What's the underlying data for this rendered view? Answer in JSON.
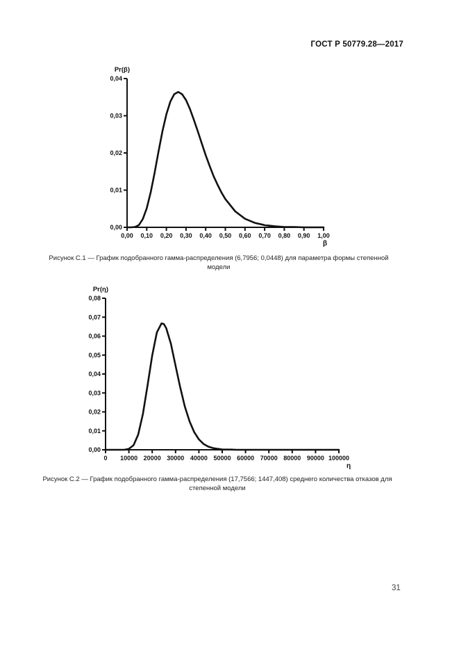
{
  "page": {
    "header_title": "ГОСТ Р 50779.28—2017",
    "page_number": "31"
  },
  "chart_data": [
    {
      "type": "line",
      "caption": "Рисунок С.1 — График подобранного гамма-распределения (6,7956; 0,0448) для параметра формы степенной\nмодели",
      "ylabel": "Pr(β)",
      "xlabel": "β",
      "xlim": [
        0,
        1.0
      ],
      "ylim": [
        0,
        0.04
      ],
      "x_tick_values": [
        0,
        0.1,
        0.2,
        0.3,
        0.4,
        0.5,
        0.6,
        0.7,
        0.8,
        0.9,
        1.0
      ],
      "x_tick_labels": [
        "0,00",
        "0,10",
        "0,20",
        "0,30",
        "0,40",
        "0,50",
        "0,60",
        "0,70",
        "0,80",
        "0,90",
        "1,00"
      ],
      "y_tick_values": [
        0,
        0.01,
        0.02,
        0.03,
        0.04
      ],
      "y_tick_labels": [
        "0,00",
        "0,01",
        "0,02",
        "0,03",
        "0,04"
      ],
      "grid": false,
      "legend": "none",
      "series": [
        {
          "name": "гамма-распределение (6,7956; 0,0448)",
          "x": [
            0,
            0.02,
            0.04,
            0.06,
            0.08,
            0.1,
            0.12,
            0.14,
            0.16,
            0.18,
            0.2,
            0.22,
            0.24,
            0.26,
            0.28,
            0.3,
            0.32,
            0.34,
            0.36,
            0.38,
            0.4,
            0.42,
            0.44,
            0.46,
            0.48,
            0.5,
            0.55,
            0.6,
            0.65,
            0.7,
            0.75,
            0.8,
            0.85,
            0.9,
            0.95,
            1.0
          ],
          "y": [
            0,
            0.0,
            0.0001,
            0.0006,
            0.0022,
            0.0051,
            0.0094,
            0.0146,
            0.0204,
            0.0258,
            0.0304,
            0.0338,
            0.0358,
            0.0364,
            0.0358,
            0.0342,
            0.0318,
            0.0289,
            0.0258,
            0.0226,
            0.0194,
            0.0165,
            0.0138,
            0.0115,
            0.0094,
            0.0076,
            0.0043,
            0.0023,
            0.0012,
            0.0006,
            0.0003,
            0.0001,
            0.0001,
            0.0,
            0.0,
            0.0
          ]
        }
      ]
    },
    {
      "type": "line",
      "caption": "Рисунок С.2 — График подобранного гамма-распределения (17,7566; 1447,408) среднего количества отказов для\nстепенной модели",
      "ylabel": "Pr(η)",
      "xlabel": "η",
      "xlim": [
        0,
        100000
      ],
      "ylim": [
        0,
        0.08
      ],
      "x_tick_values": [
        0,
        10000,
        20000,
        30000,
        40000,
        50000,
        60000,
        70000,
        80000,
        90000,
        100000
      ],
      "x_tick_labels": [
        "0",
        "10000",
        "20000",
        "30000",
        "40000",
        "50000",
        "60000",
        "70000",
        "80000",
        "90000",
        "100000"
      ],
      "y_tick_values": [
        0,
        0.01,
        0.02,
        0.03,
        0.04,
        0.05,
        0.06,
        0.07,
        0.08
      ],
      "y_tick_labels": [
        "0,00",
        "0,01",
        "0,02",
        "0,03",
        "0,04",
        "0,05",
        "0,06",
        "0,07",
        "0,08"
      ],
      "grid": false,
      "legend": "none",
      "series": [
        {
          "name": "гамма-распределение (17,7566; 1447,408)",
          "x": [
            0,
            2000,
            4000,
            6000,
            8000,
            10000,
            12000,
            14000,
            16000,
            18000,
            20000,
            22000,
            24000,
            25000,
            26000,
            28000,
            30000,
            32000,
            34000,
            36000,
            38000,
            40000,
            42000,
            44000,
            46000,
            48000,
            50000,
            52000,
            54000,
            56000,
            58000,
            60000,
            70000,
            80000,
            90000,
            100000
          ],
          "y": [
            0,
            0,
            0,
            0,
            0.0,
            0.0005,
            0.0024,
            0.008,
            0.0189,
            0.034,
            0.0498,
            0.062,
            0.0667,
            0.0664,
            0.0642,
            0.056,
            0.0444,
            0.033,
            0.0228,
            0.015,
            0.0093,
            0.0055,
            0.0031,
            0.0017,
            0.0009,
            0.0005,
            0.0002,
            0.0001,
            0.0001,
            0.0,
            0.0,
            0,
            0,
            0,
            0,
            0
          ]
        }
      ]
    }
  ]
}
